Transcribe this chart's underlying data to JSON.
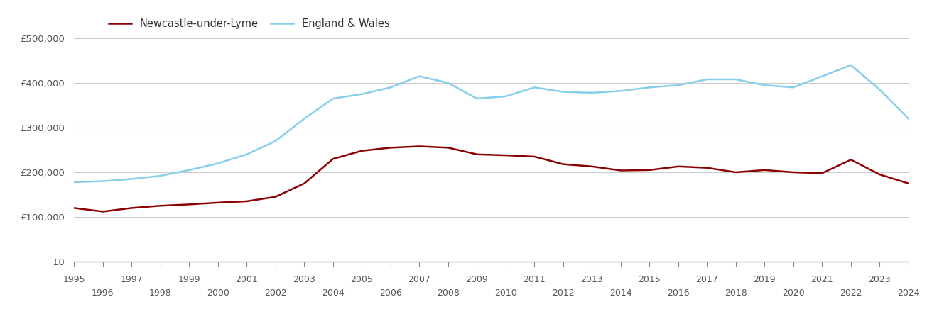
{
  "newcastle_years": [
    1995,
    1996,
    1997,
    1998,
    1999,
    2000,
    2001,
    2002,
    2003,
    2004,
    2005,
    2006,
    2007,
    2008,
    2009,
    2010,
    2011,
    2012,
    2013,
    2014,
    2015,
    2016,
    2017,
    2018,
    2019,
    2020,
    2021,
    2022,
    2023,
    2024
  ],
  "newcastle_values": [
    120000,
    112000,
    120000,
    125000,
    128000,
    132000,
    135000,
    145000,
    175000,
    230000,
    248000,
    255000,
    258000,
    255000,
    240000,
    238000,
    235000,
    218000,
    213000,
    204000,
    205000,
    213000,
    210000,
    200000,
    205000,
    200000,
    198000,
    228000,
    195000,
    175000
  ],
  "england_years": [
    1995,
    1996,
    1997,
    1998,
    1999,
    2000,
    2001,
    2002,
    2003,
    2004,
    2005,
    2006,
    2007,
    2008,
    2009,
    2010,
    2011,
    2012,
    2013,
    2014,
    2015,
    2016,
    2017,
    2018,
    2019,
    2020,
    2021,
    2022,
    2023,
    2024
  ],
  "england_values": [
    178000,
    180000,
    185000,
    192000,
    205000,
    220000,
    240000,
    270000,
    320000,
    365000,
    375000,
    390000,
    415000,
    400000,
    365000,
    370000,
    390000,
    380000,
    378000,
    382000,
    390000,
    395000,
    408000,
    408000,
    395000,
    390000,
    415000,
    440000,
    385000,
    320000
  ],
  "newcastle_color": "#8B0000",
  "england_color": "#87CEEB",
  "background_color": "#ffffff",
  "grid_color": "#cccccc",
  "ylim": [
    0,
    500000
  ],
  "yticks": [
    0,
    100000,
    200000,
    300000,
    400000,
    500000
  ],
  "legend_labels": [
    "Newcastle-under-Lyme",
    "England & Wales"
  ],
  "linewidth": 1.8,
  "figsize": [
    13.05,
    4.5
  ],
  "dpi": 100,
  "odd_years": [
    1995,
    1997,
    1999,
    2001,
    2003,
    2005,
    2007,
    2009,
    2011,
    2013,
    2015,
    2017,
    2019,
    2021,
    2023
  ],
  "even_years": [
    1996,
    1998,
    2000,
    2002,
    2004,
    2006,
    2008,
    2010,
    2012,
    2014,
    2016,
    2018,
    2020,
    2022,
    2024
  ]
}
